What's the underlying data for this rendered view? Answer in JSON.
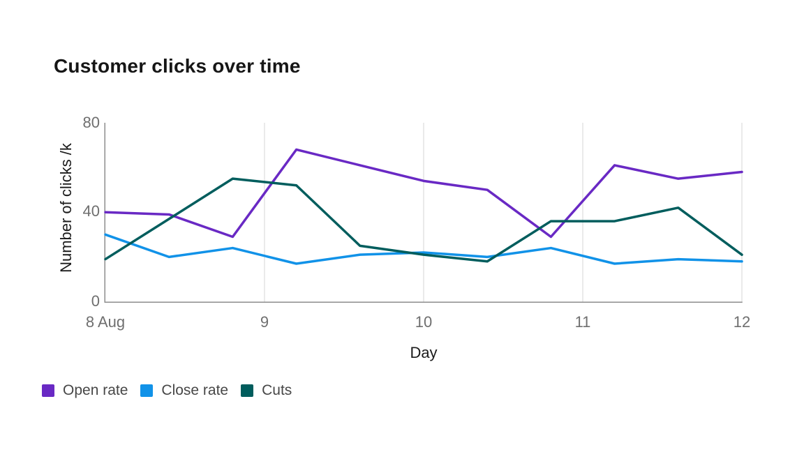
{
  "title": "Customer clicks over time",
  "chart_data": {
    "type": "line",
    "title": "Customer clicks over time",
    "xlabel": "Day",
    "ylabel": "Number of clicks /k",
    "xlim": [
      8,
      12
    ],
    "ylim": [
      0,
      80
    ],
    "grid": "vertical-only",
    "legend_position": "bottom-left",
    "x": [
      8,
      8.4,
      8.8,
      9.2,
      9.6,
      10,
      10.4,
      10.8,
      11.2,
      11.6,
      12
    ],
    "x_tick_values": [
      8,
      9,
      10,
      11,
      12
    ],
    "x_tick_labels": [
      "8 Aug",
      "9",
      "10",
      "11",
      "12"
    ],
    "y_ticks": [
      "0",
      "40",
      "80"
    ],
    "series": [
      {
        "name": "Open rate",
        "color": "#6929c4",
        "values": [
          40,
          39,
          29,
          68,
          61,
          54,
          50,
          29,
          61,
          55,
          58
        ]
      },
      {
        "name": "Close rate",
        "color": "#1192e8",
        "values": [
          30,
          20,
          24,
          17,
          21,
          22,
          20,
          24,
          17,
          19,
          18
        ]
      },
      {
        "name": "Cuts",
        "color": "#005d5d",
        "values": [
          19,
          37,
          55,
          52,
          25,
          21,
          18,
          36,
          36,
          42,
          21
        ]
      }
    ]
  }
}
